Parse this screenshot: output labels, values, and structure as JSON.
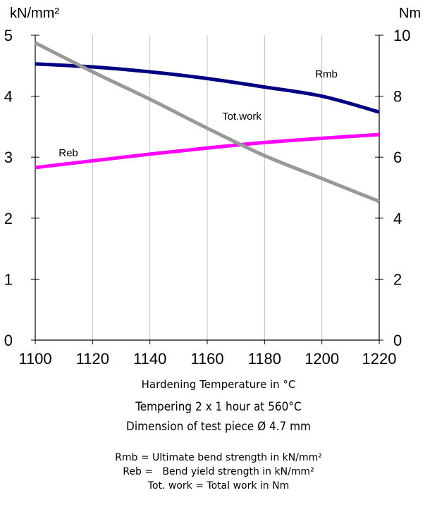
{
  "chart_data": {
    "type": "line",
    "left_unit": "kN/mm²",
    "right_unit": "Nm",
    "xlabel": "Hardening Temperature in °C",
    "subtitle_lines": [
      "Tempering 2 x 1 hour at 560°C",
      "Dimension of test piece Ø 4.7 mm"
    ],
    "legend_lines": [
      "Rmb = Ultimate bend strength in kN/mm²",
      "Reb =   Bend yield strength in kN/mm²",
      "Tot. work = Total work in Nm"
    ],
    "x_ticks": [
      1100,
      1120,
      1140,
      1160,
      1180,
      1200,
      1220
    ],
    "xlim": [
      1100,
      1220
    ],
    "y_left_ticks": [
      0,
      1,
      2,
      3,
      4,
      5
    ],
    "y_left_lim": [
      0,
      5
    ],
    "y_right_ticks": [
      0,
      2,
      4,
      6,
      8,
      10
    ],
    "y_right_lim": [
      0,
      10
    ],
    "grid": true,
    "series": [
      {
        "name": "Rmb",
        "axis": "left",
        "color": "#000080",
        "x": [
          1100,
          1120,
          1140,
          1160,
          1180,
          1200,
          1220
        ],
        "y": [
          4.53,
          4.48,
          4.4,
          4.29,
          4.15,
          4.0,
          3.74
        ]
      },
      {
        "name": "Reb",
        "axis": "left",
        "color": "#ff00ff",
        "x": [
          1100,
          1120,
          1140,
          1160,
          1180,
          1200,
          1220
        ],
        "y": [
          2.83,
          2.94,
          3.05,
          3.15,
          3.24,
          3.31,
          3.37
        ]
      },
      {
        "name": "Tot.work",
        "axis": "right",
        "color": "#999999",
        "x": [
          1100,
          1120,
          1140,
          1160,
          1180,
          1200,
          1220
        ],
        "y": [
          9.75,
          8.8,
          7.9,
          6.95,
          6.05,
          5.3,
          4.55
        ]
      }
    ]
  }
}
